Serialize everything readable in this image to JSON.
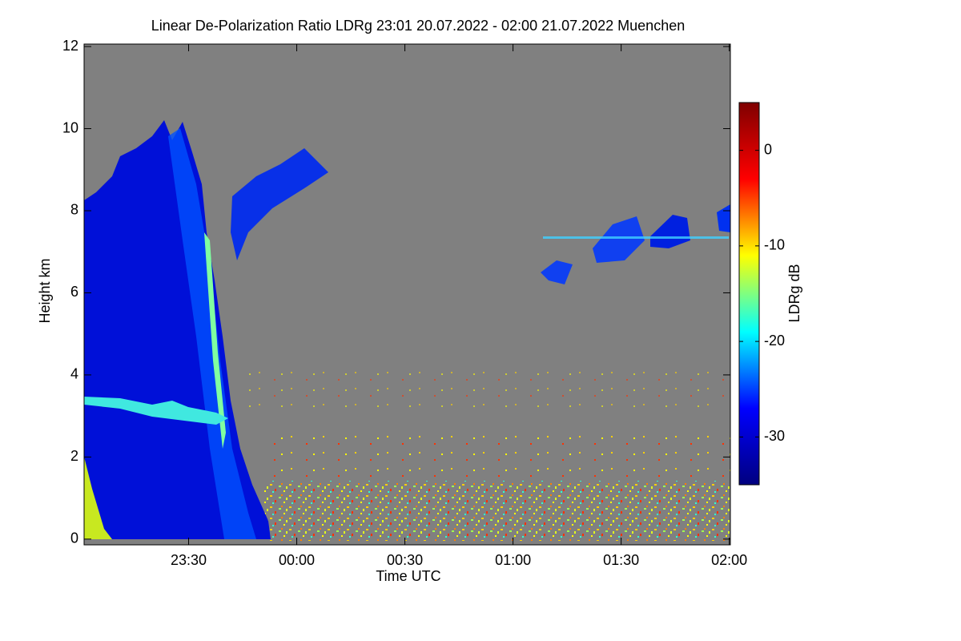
{
  "chart_data": {
    "type": "heatmap",
    "title": "Linear De-Polarization Ratio LDRg   23:01 20.07.2022 - 02:00 21.07.2022 Muenchen",
    "x_label": "Time UTC",
    "y_label": "Height km",
    "xlim": [
      1,
      180.3
    ],
    "xticks": [
      {
        "value": 30,
        "label": "23:30"
      },
      {
        "value": 60,
        "label": "00:00"
      },
      {
        "value": 90,
        "label": "00:30"
      },
      {
        "value": 120,
        "label": "01:00"
      },
      {
        "value": 150,
        "label": "01:30"
      },
      {
        "value": 180,
        "label": "02:00"
      }
    ],
    "ylim": [
      -0.14,
      12.06
    ],
    "yticks": [
      0,
      2,
      4,
      6,
      8,
      10,
      12
    ],
    "colorbar": {
      "label": "LDRg dB",
      "clim": [
        -35,
        5
      ],
      "ticks": [
        0,
        -10,
        -20,
        -30
      ],
      "colormap": [
        "#00007f",
        "#0000ff",
        "#00ffff",
        "#ffff00",
        "#ff0000",
        "#7f0000"
      ]
    },
    "background": "#808080"
  }
}
